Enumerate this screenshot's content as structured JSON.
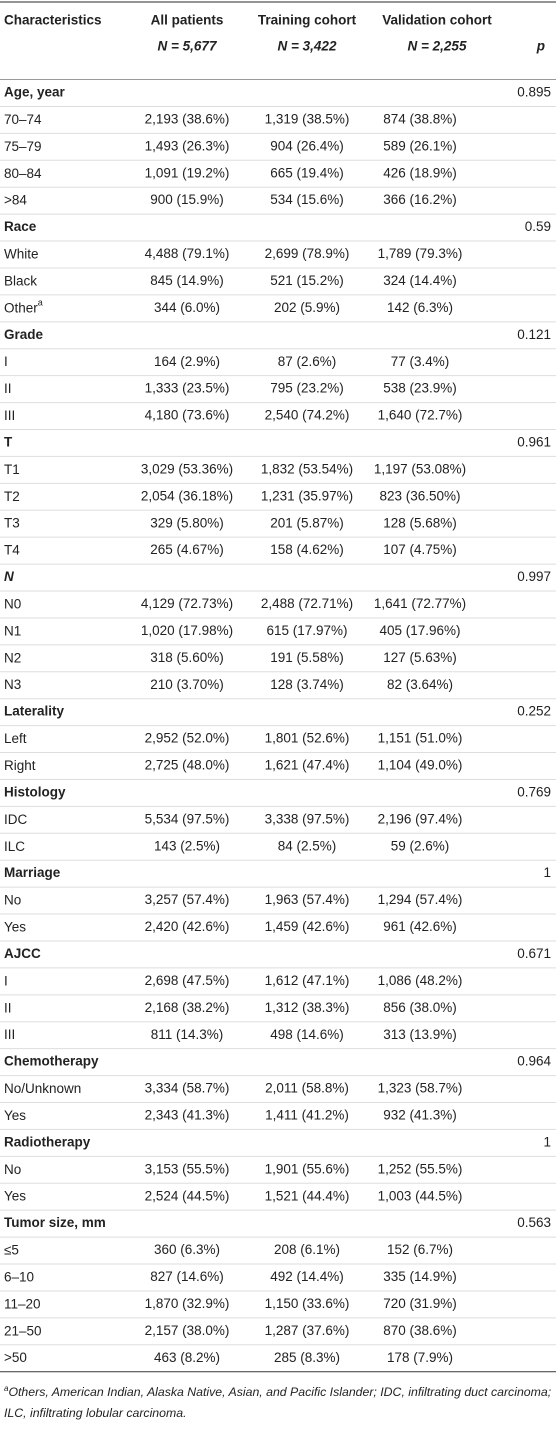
{
  "header": {
    "columns": [
      "Characteristics",
      "All patients",
      "Training cohort",
      "Validation cohort",
      "p"
    ],
    "n": [
      "N = 5,677",
      "N = 3,422",
      "N = 2,255"
    ]
  },
  "sections": [
    {
      "label": "Age, year",
      "p": "0.895",
      "rows": [
        {
          "label": "70–74",
          "all": "2,193 (38.6%)",
          "training": "1,319 (38.5%)",
          "validation": "874 (38.8%)"
        },
        {
          "label": "75–79",
          "all": "1,493 (26.3%)",
          "training": "904 (26.4%)",
          "validation": "589 (26.1%)"
        },
        {
          "label": "80–84",
          "all": "1,091 (19.2%)",
          "training": "665 (19.4%)",
          "validation": "426 (18.9%)"
        },
        {
          "label": ">84",
          "all": "900 (15.9%)",
          "training": "534 (15.6%)",
          "validation": "366 (16.2%)"
        }
      ]
    },
    {
      "label": "Race",
      "p": "0.59",
      "rows": [
        {
          "label": "White",
          "all": "4,488 (79.1%)",
          "training": "2,699 (78.9%)",
          "validation": "1,789 (79.3%)"
        },
        {
          "label": "Black",
          "all": "845 (14.9%)",
          "training": "521 (15.2%)",
          "validation": "324 (14.4%)"
        },
        {
          "label": "Other",
          "sup": "a",
          "all": "344 (6.0%)",
          "training": "202 (5.9%)",
          "validation": "142 (6.3%)"
        }
      ]
    },
    {
      "label": "Grade",
      "p": "0.121",
      "rows": [
        {
          "label": "I",
          "all": "164 (2.9%)",
          "training": "87 (2.6%)",
          "validation": "77 (3.4%)"
        },
        {
          "label": "II",
          "all": "1,333 (23.5%)",
          "training": "795 (23.2%)",
          "validation": "538 (23.9%)"
        },
        {
          "label": "III",
          "all": "4,180 (73.6%)",
          "training": "2,540 (74.2%)",
          "validation": "1,640 (72.7%)"
        }
      ]
    },
    {
      "label": "T",
      "p": "0.961",
      "rows": [
        {
          "label": "T1",
          "all": "3,029 (53.36%)",
          "training": "1,832 (53.54%)",
          "validation": "1,197 (53.08%)"
        },
        {
          "label": "T2",
          "all": "2,054 (36.18%)",
          "training": "1,231 (35.97%)",
          "validation": "823 (36.50%)"
        },
        {
          "label": "T3",
          "all": "329 (5.80%)",
          "training": "201 (5.87%)",
          "validation": "128 (5.68%)"
        },
        {
          "label": "T4",
          "all": "265 (4.67%)",
          "training": "158 (4.62%)",
          "validation": "107 (4.75%)"
        }
      ]
    },
    {
      "label": "N",
      "italic": true,
      "p": "0.997",
      "rows": [
        {
          "label": "N0",
          "all": "4,129 (72.73%)",
          "training": "2,488 (72.71%)",
          "validation": "1,641 (72.77%)"
        },
        {
          "label": "N1",
          "all": "1,020 (17.98%)",
          "training": "615 (17.97%)",
          "validation": "405 (17.96%)"
        },
        {
          "label": "N2",
          "all": "318 (5.60%)",
          "training": "191 (5.58%)",
          "validation": "127 (5.63%)"
        },
        {
          "label": "N3",
          "all": "210 (3.70%)",
          "training": "128 (3.74%)",
          "validation": "82 (3.64%)"
        }
      ]
    },
    {
      "label": "Laterality",
      "p": "0.252",
      "rows": [
        {
          "label": "Left",
          "all": "2,952 (52.0%)",
          "training": "1,801 (52.6%)",
          "validation": "1,151 (51.0%)"
        },
        {
          "label": "Right",
          "all": "2,725 (48.0%)",
          "training": "1,621 (47.4%)",
          "validation": "1,104 (49.0%)"
        }
      ]
    },
    {
      "label": "Histology",
      "p": "0.769",
      "rows": [
        {
          "label": "IDC",
          "all": "5,534 (97.5%)",
          "training": "3,338 (97.5%)",
          "validation": "2,196 (97.4%)"
        },
        {
          "label": "ILC",
          "all": "143 (2.5%)",
          "training": "84 (2.5%)",
          "validation": "59 (2.6%)"
        }
      ]
    },
    {
      "label": "Marriage",
      "p": "1",
      "rows": [
        {
          "label": "No",
          "all": "3,257 (57.4%)",
          "training": "1,963 (57.4%)",
          "validation": "1,294 (57.4%)"
        },
        {
          "label": "Yes",
          "all": "2,420 (42.6%)",
          "training": "1,459 (42.6%)",
          "validation": "961 (42.6%)"
        }
      ]
    },
    {
      "label": "AJCC",
      "p": "0.671",
      "rows": [
        {
          "label": "I",
          "all": "2,698 (47.5%)",
          "training": "1,612 (47.1%)",
          "validation": "1,086 (48.2%)"
        },
        {
          "label": "II",
          "all": "2,168 (38.2%)",
          "training": "1,312 (38.3%)",
          "validation": "856 (38.0%)"
        },
        {
          "label": "III",
          "all": "811 (14.3%)",
          "training": "498 (14.6%)",
          "validation": "313 (13.9%)"
        }
      ]
    },
    {
      "label": "Chemotherapy",
      "p": "0.964",
      "rows": [
        {
          "label": "No/Unknown",
          "all": "3,334 (58.7%)",
          "training": "2,011 (58.8%)",
          "validation": "1,323 (58.7%)"
        },
        {
          "label": "Yes",
          "all": "2,343 (41.3%)",
          "training": "1,411 (41.2%)",
          "validation": "932 (41.3%)"
        }
      ]
    },
    {
      "label": "Radiotherapy",
      "p": "1",
      "rows": [
        {
          "label": "No",
          "all": "3,153 (55.5%)",
          "training": "1,901 (55.6%)",
          "validation": "1,252 (55.5%)"
        },
        {
          "label": "Yes",
          "all": "2,524 (44.5%)",
          "training": "1,521 (44.4%)",
          "validation": "1,003 (44.5%)"
        }
      ]
    },
    {
      "label": "Tumor size, mm",
      "p": "0.563",
      "rows": [
        {
          "label": "≤5",
          "all": "360 (6.3%)",
          "training": "208 (6.1%)",
          "validation": "152 (6.7%)"
        },
        {
          "label": "6–10",
          "all": "827 (14.6%)",
          "training": "492 (14.4%)",
          "validation": "335 (14.9%)"
        },
        {
          "label": "11–20",
          "all": "1,870 (32.9%)",
          "training": "1,150 (33.6%)",
          "validation": "720 (31.9%)"
        },
        {
          "label": "21–50",
          "all": "2,157 (38.0%)",
          "training": "1,287 (37.6%)",
          "validation": "870 (38.6%)"
        },
        {
          "label": ">50",
          "all": "463 (8.2%)",
          "training": "285 (8.3%)",
          "validation": "178 (7.9%)"
        }
      ]
    }
  ],
  "footnote": {
    "marker": "a",
    "text": "Others, American Indian, Alaska Native, Asian, and Pacific Islander; IDC, infiltrating duct carcinoma; ILC, infiltrating lobular carcinoma."
  }
}
